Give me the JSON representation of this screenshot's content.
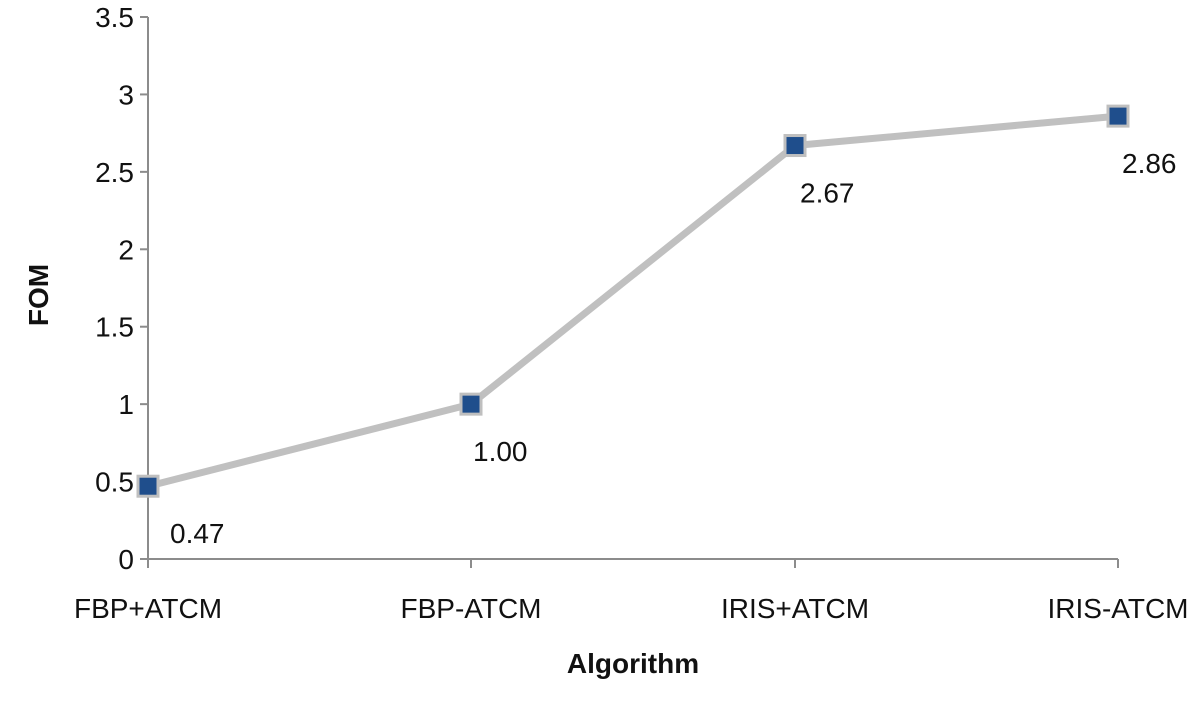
{
  "chart_data": {
    "type": "line",
    "categories": [
      "FBP+ATCM",
      "FBP-ATCM",
      "IRIS+ATCM",
      "IRIS-ATCM"
    ],
    "series": [
      {
        "values": [
          0.47,
          1.0,
          2.67,
          2.86
        ]
      }
    ],
    "data_labels": [
      "0.47",
      "1.00",
      "2.67",
      "2.86"
    ],
    "xlabel": "Algorithm",
    "ylabel": "FOM",
    "ylim": [
      0,
      3.5
    ],
    "yticks": [
      0,
      0.5,
      1,
      1.5,
      2,
      2.5,
      3,
      3.5
    ],
    "ytick_labels": [
      "0",
      "0.5",
      "1",
      "1.5",
      "2",
      "2.5",
      "3",
      "3.5"
    ],
    "grid": false,
    "legend": "none",
    "marker": "square",
    "colors": {
      "line": "#c0c0c0",
      "marker_fill": "#1f4e8c",
      "marker_edge": "#bfbfbf",
      "axis": "#8c8c8c"
    }
  }
}
